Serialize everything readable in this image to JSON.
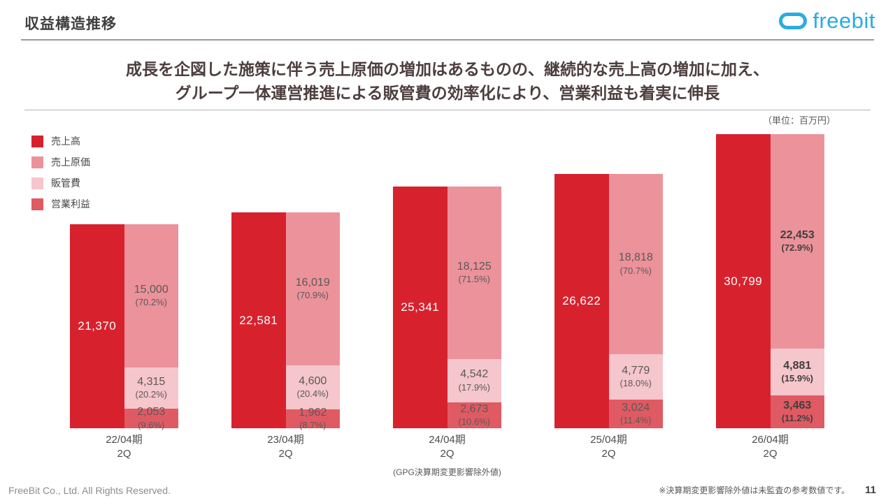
{
  "header": {
    "title": "収益構造推移",
    "logo_text": "freebit",
    "logo_color": "#29ABE2"
  },
  "headline": {
    "line1": "成長を企図した施策に伴う売上原価の増加はあるものの、継続的な売上高の増加に加え、",
    "line2": "グループ一体運営推進による販管費の効率化により、営業利益も着実に伸長"
  },
  "chart_data": {
    "type": "bar",
    "unit_label": "（単位：百万円）",
    "legend_position": "top-left",
    "scale_max": 30799,
    "colors": {
      "revenue": "#D7222E",
      "cost": "#EC929B",
      "sga": "#F5C6CB",
      "op": "#E05A63"
    },
    "legend": [
      {
        "key": "revenue",
        "label": "売上高",
        "color": "#D7222E"
      },
      {
        "key": "cost",
        "label": "売上原価",
        "color": "#EC929B"
      },
      {
        "key": "sga",
        "label": "販管費",
        "color": "#F5C6CB"
      },
      {
        "key": "op",
        "label": "営業利益",
        "color": "#E05A63"
      }
    ],
    "groups": [
      {
        "category_line1": "22/04期",
        "category_line2": "2Q",
        "note": "",
        "revenue": 21370,
        "revenue_label": "21,370",
        "cost": 15000,
        "cost_label": "15,000",
        "cost_pct": "(70.2%)",
        "sga": 4315,
        "sga_label": "4,315",
        "sga_pct": "(20.2%)",
        "op": 2053,
        "op_label": "2,053",
        "op_pct": "(9.6%)",
        "emphasis": false
      },
      {
        "category_line1": "23/04期",
        "category_line2": "2Q",
        "note": "",
        "revenue": 22581,
        "revenue_label": "22,581",
        "cost": 16019,
        "cost_label": "16,019",
        "cost_pct": "(70.9%)",
        "sga": 4600,
        "sga_label": "4,600",
        "sga_pct": "(20.4%)",
        "op": 1962,
        "op_label": "1,962",
        "op_pct": "(8.7%)",
        "emphasis": false
      },
      {
        "category_line1": "24/04期",
        "category_line2": "2Q",
        "note": "(GPG決算期変更影響除外値)",
        "revenue": 25341,
        "revenue_label": "25,341",
        "cost": 18125,
        "cost_label": "18,125",
        "cost_pct": "(71.5%)",
        "sga": 4542,
        "sga_label": "4,542",
        "sga_pct": "(17.9%)",
        "op": 2673,
        "op_label": "2,673",
        "op_pct": "(10.6%)",
        "emphasis": false
      },
      {
        "category_line1": "25/04期",
        "category_line2": "2Q",
        "note": "",
        "revenue": 26622,
        "revenue_label": "26,622",
        "cost": 18818,
        "cost_label": "18,818",
        "cost_pct": "(70.7%)",
        "sga": 4779,
        "sga_label": "4,779",
        "sga_pct": "(18.0%)",
        "op": 3024,
        "op_label": "3,024",
        "op_pct": "(11.4%)",
        "emphasis": false
      },
      {
        "category_line1": "26/04期",
        "category_line2": "2Q",
        "note": "",
        "revenue": 30799,
        "revenue_label": "30,799",
        "cost": 22453,
        "cost_label": "22,453",
        "cost_pct": "(72.9%)",
        "sga": 4881,
        "sga_label": "4,881",
        "sga_pct": "(15.9%)",
        "op": 3463,
        "op_label": "3,463",
        "op_pct": "(11.2%)",
        "emphasis": true
      }
    ]
  },
  "footer": {
    "copyright": "FreeBit Co., Ltd. All Rights Reserved.",
    "note": "※決算期変更影響除外値は未監査の参考数値です。",
    "page": "11"
  }
}
